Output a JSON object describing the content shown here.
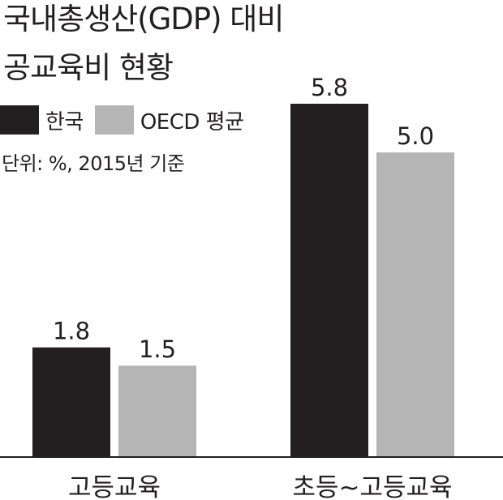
{
  "title_line1": "국내총생산(GDP) 대비",
  "title_line2": "공교육비 현황",
  "unit_note": "단위: %, 2015년 기준",
  "colors": {
    "korea": "#231f20",
    "oecd": "#b5b5b6",
    "axis": "#231f20",
    "text": "#231f20"
  },
  "chart_data": {
    "type": "bar",
    "categories": [
      "고등교육",
      "초등~고등교육"
    ],
    "series": [
      {
        "name": "한국",
        "values": [
          1.8,
          5.8
        ]
      },
      {
        "name": "OECD 평균",
        "values": [
          1.5,
          5.0
        ]
      }
    ],
    "data_labels": [
      [
        "1.8",
        "5.8"
      ],
      [
        "1.5",
        "5.0"
      ]
    ],
    "title": "국내총생산(GDP) 대비 공교육비 현황",
    "xlabel": "",
    "ylabel": "",
    "ylim": [
      0,
      5.8
    ],
    "grid": false,
    "legend": "top-left"
  }
}
